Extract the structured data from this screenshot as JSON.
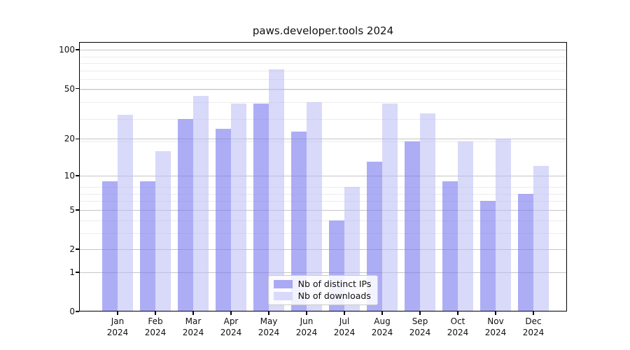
{
  "figure": {
    "title": "paws.developer.tools 2024"
  },
  "chart_data": {
    "type": "bar",
    "title": "paws.developer.tools 2024",
    "x_axis": {
      "categories": [
        "Jan",
        "Feb",
        "Mar",
        "Apr",
        "May",
        "Jun",
        "Jul",
        "Aug",
        "Sep",
        "Oct",
        "Nov",
        "Dec"
      ],
      "sublabel": "2024"
    },
    "y_axis": {
      "scale": "log1p",
      "ticks": [
        0,
        1,
        2,
        5,
        10,
        20,
        50,
        100
      ],
      "minor_ticks": [
        2,
        3,
        4,
        6,
        7,
        8,
        19,
        29,
        39,
        49,
        59,
        69,
        79,
        89
      ],
      "lim": [
        0,
        115
      ]
    },
    "series": [
      {
        "name": "Nb of distinct IPs",
        "fill": "rgba(122,122,240,0.62)",
        "swatch": "#a9a9f5",
        "values": [
          9,
          9,
          29,
          24,
          38,
          23,
          4,
          13,
          19,
          9,
          6,
          7
        ]
      },
      {
        "name": "Nb of downloads",
        "fill": "rgba(186,186,246,0.55)",
        "swatch": "#d9d9fa",
        "values": [
          31,
          16,
          44,
          38,
          71,
          39,
          8,
          38,
          32,
          19,
          20,
          12
        ]
      }
    ],
    "grid": {
      "major_color": "#c6c6c6",
      "minor_color": "#ececec"
    },
    "legend_position": "lower center"
  }
}
